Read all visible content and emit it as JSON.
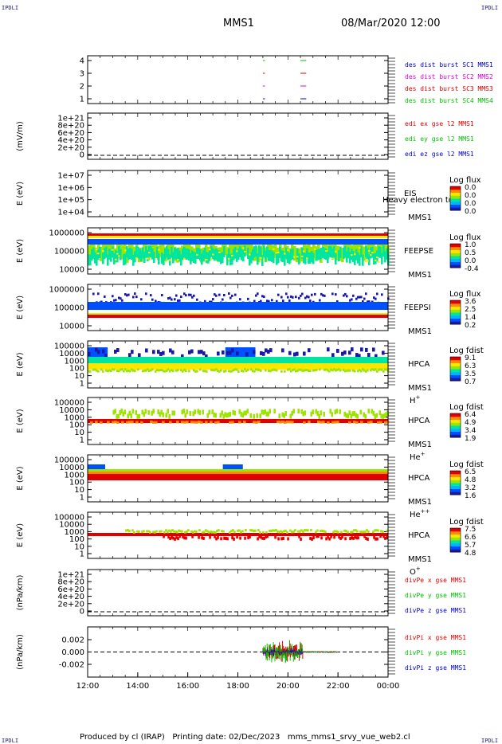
{
  "header": {
    "mission": "MMS1",
    "datetime": "08/Mar/2020 12:00",
    "corner_label": "IPDLI"
  },
  "footer": {
    "text": "Produced by cl (IRAP)   Printing date: 02/Dec/2023   mms_mms1_srvy_vue_web2.cl"
  },
  "x_axis": {
    "tick_labels": [
      "12:00",
      "14:00",
      "16:00",
      "18:00",
      "20:00",
      "22:00",
      "00:00"
    ],
    "range_hours": [
      12,
      24
    ]
  },
  "colors": {
    "red": "#e00000",
    "green": "#00c000",
    "blue": "#0000d0",
    "magenta": "#e000e0",
    "spectrum": [
      "#1a1aa6",
      "#0050ff",
      "#00b4ff",
      "#00e6a0",
      "#9be600",
      "#ffe600",
      "#ff8c00",
      "#e00000"
    ]
  },
  "chart_data": [
    {
      "type": "line",
      "ylabel": "",
      "yticks": [
        "1",
        "2",
        "3",
        "4"
      ],
      "legend": [
        {
          "text": "des dist burst SC1 MMS1",
          "color": "#0000d0"
        },
        {
          "text": "des dist burst SC2 MMS2",
          "color": "#e000e0"
        },
        {
          "text": "des dist burst SC3 MMS3",
          "color": "#e00000"
        },
        {
          "text": "des dist burst SC4 MMS4",
          "color": "#00c000"
        }
      ],
      "bursts": [
        {
          "start": 19.0,
          "end": 19.05,
          "levels": [
            1,
            2,
            3,
            4
          ]
        },
        {
          "start": 20.5,
          "end": 20.7,
          "levels": [
            1,
            2,
            3,
            4
          ]
        }
      ]
    },
    {
      "type": "line",
      "ylabel": "(mV/m)",
      "yticks": [
        "0",
        "2e+20",
        "4e+20",
        "6e+20",
        "8e+20",
        "1e+21"
      ],
      "legend": [
        {
          "text": "edi ex gse l2 MMS1",
          "color": "#e00000"
        },
        {
          "text": "edi ey gse l2 MMS1",
          "color": "#00c000"
        },
        {
          "text": "edi ez gse l2 MMS1",
          "color": "#0000d0"
        }
      ],
      "zero_line": true
    },
    {
      "type": "heatmap",
      "ylabel": "E (eV)",
      "yticks": [
        "1e+04",
        "1e+05",
        "1e+06",
        "1e+07"
      ],
      "instrument": "EIS",
      "spacecraft": "MMS1",
      "note": "Heavy electron to",
      "colorbar_title": "Log flux",
      "colorbar_ticks": [
        "0.0",
        "0.0",
        "0.0",
        "0.0"
      ],
      "data": "empty"
    },
    {
      "type": "heatmap",
      "ylabel": "E (eV)",
      "yticks": [
        "10000",
        "100000",
        "1000000"
      ],
      "instrument": "FEEPSE",
      "spacecraft": "MMS1",
      "colorbar_title": "Log flux",
      "colorbar_ticks": [
        "1.0",
        "0.5",
        "0.0",
        "-0.4"
      ],
      "data": "continuous band 30 keV to 600 keV, red line at top"
    },
    {
      "type": "heatmap",
      "ylabel": "E (eV)",
      "yticks": [
        "10000",
        "100000",
        "1000000"
      ],
      "instrument": "FEEPSI",
      "spacecraft": "MMS1",
      "colorbar_title": "Log flux",
      "colorbar_ticks": [
        "3.6",
        "2.5",
        "1.4",
        "0.2"
      ],
      "data": "red band ~60 keV, blue flux above"
    },
    {
      "type": "heatmap",
      "ylabel": "E (eV)",
      "yticks": [
        "1",
        "10",
        "100",
        "1000",
        "10000",
        "100000"
      ],
      "instrument": "HPCA",
      "spacecraft": "MMS1",
      "species": "H+",
      "colorbar_title": "Log fdist",
      "colorbar_ticks": [
        "9.1",
        "6.3",
        "3.5",
        "0.7"
      ],
      "data": "green/yellow band 200-2000 eV"
    },
    {
      "type": "heatmap",
      "ylabel": "E (eV)",
      "yticks": [
        "1",
        "10",
        "100",
        "1000",
        "10000",
        "100000"
      ],
      "instrument": "HPCA",
      "spacecraft": "MMS1",
      "species": "He+",
      "colorbar_title": "Log fdist",
      "colorbar_ticks": [
        "6.4",
        "4.9",
        "3.4",
        "1.9"
      ],
      "data": "red line ~500 eV"
    },
    {
      "type": "heatmap",
      "ylabel": "E (eV)",
      "yticks": [
        "1",
        "10",
        "100",
        "1000",
        "10000",
        "100000"
      ],
      "instrument": "HPCA",
      "spacecraft": "MMS1",
      "species": "He++",
      "colorbar_title": "Log fdist",
      "colorbar_ticks": [
        "6.5",
        "4.8",
        "3.2",
        "1.6"
      ],
      "data": "red band ~500-1500 eV"
    },
    {
      "type": "heatmap",
      "ylabel": "E (eV)",
      "yticks": [
        "1",
        "10",
        "100",
        "1000",
        "10000",
        "100000"
      ],
      "instrument": "HPCA",
      "spacecraft": "MMS1",
      "species": "O+",
      "colorbar_title": "Log fdist",
      "colorbar_ticks": [
        "7.5",
        "6.6",
        "5.7",
        "4.8"
      ],
      "data": "red/green line ~700 eV"
    },
    {
      "type": "line",
      "ylabel": "(nPa/km)",
      "yticks": [
        "0",
        "2e+20",
        "4e+20",
        "6e+20",
        "8e+20",
        "1e+21"
      ],
      "legend": [
        {
          "text": "divPe x gse MMS1",
          "color": "#e00000"
        },
        {
          "text": "divPe y gse MMS1",
          "color": "#00c000"
        },
        {
          "text": "divPe z gse MMS1",
          "color": "#0000d0"
        }
      ],
      "zero_line": true
    },
    {
      "type": "line",
      "ylabel": "(nPa/km)",
      "yticks": [
        "-0.002",
        "0.000",
        "0.002"
      ],
      "ylim": [
        -0.0035,
        0.0035
      ],
      "legend": [
        {
          "text": "divPi x gse MMS1",
          "color": "#e00000"
        },
        {
          "text": "divPi y gse MMS1",
          "color": "#00c000"
        },
        {
          "text": "divPi z gse MMS1",
          "color": "#0000d0"
        }
      ],
      "zero_line": true,
      "active_interval_hours": [
        19.0,
        22.0
      ],
      "spike_region_hours": [
        19.0,
        20.6
      ],
      "peak_amplitude": 0.003
    }
  ]
}
